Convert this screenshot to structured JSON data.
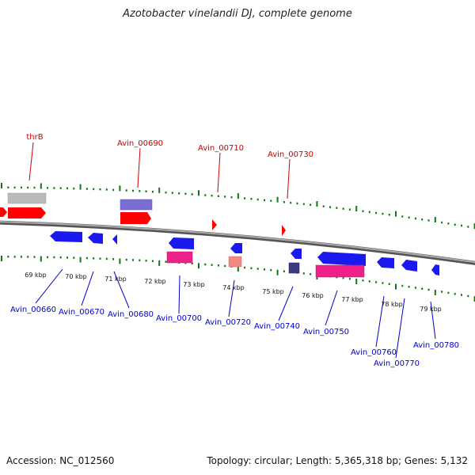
{
  "title": "Azotobacter vinelandii DJ, complete genome",
  "footer": {
    "accession": "Accession: NC_012560",
    "topology": "Topology: circular; Length: 5,365,318 bp; Genes: 5,132"
  },
  "colors": {
    "forward_label": "#cc0000",
    "reverse_label": "#0000cc",
    "backbone": "#777777",
    "ticks": "#117711",
    "forward_gene": "#ff0000",
    "reverse_gene": "#1a1aee",
    "gray_feature": "#bbbbbb",
    "purple_feature": "#7a6fd0",
    "pink_feature": "#f0208a",
    "salmon_feature": "#f08a80",
    "navy_feature": "#3a3a80"
  },
  "kbp_scale": [
    "69 kbp",
    "70 kbp",
    "71 kbp",
    "72 kbp",
    "73 kbp",
    "74 kbp",
    "75 kbp",
    "76 kbp",
    "77 kbp",
    "78 kbp",
    "79 kbp"
  ],
  "forward_labels": [
    "thrB",
    "Avin_00690",
    "Avin_00710",
    "Avin_00730"
  ],
  "reverse_labels": [
    "Avin_00660",
    "Avin_00670",
    "Avin_00680",
    "Avin_00700",
    "Avin_00720",
    "Avin_00740",
    "Avin_00750",
    "Avin_00760",
    "Avin_00770",
    "Avin_00780"
  ]
}
